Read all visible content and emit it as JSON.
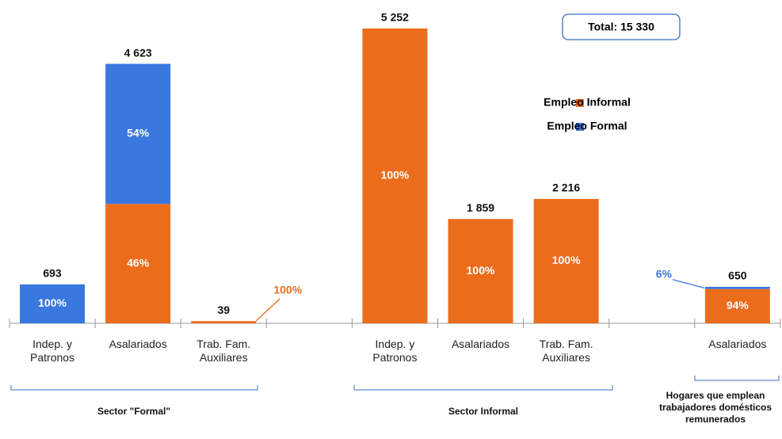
{
  "chart_data": {
    "type": "stacked-bar",
    "annotation": "Total: 15 330",
    "categories": [
      "Indep. y Patronos",
      "Asalariados",
      "Trab. Fam. Auxiliares",
      null,
      "Indep. y Patronos",
      "Asalariados",
      "Trab. Fam. Auxiliares",
      null,
      "Asalariados"
    ],
    "series": [
      {
        "name": "Empleo Informal",
        "color": "#eb6d1c",
        "values": [
          null,
          2127,
          39,
          null,
          5252,
          1859,
          2216,
          null,
          611
        ],
        "shares": [
          null,
          {
            "value": 46,
            "label": "46%"
          },
          {
            "value": 100,
            "label": "100%"
          },
          null,
          {
            "value": 100,
            "label": "100%"
          },
          {
            "value": 100,
            "label": "100%"
          },
          {
            "value": 100,
            "label": "100%"
          },
          null,
          {
            "value": 94,
            "label": "94%"
          }
        ]
      },
      {
        "name": "Empleo Formal",
        "color": "#3a78e0",
        "values": [
          693,
          2496,
          null,
          null,
          null,
          null,
          null,
          null,
          39
        ],
        "shares": [
          {
            "value": 100,
            "label": "100%"
          },
          {
            "value": 54,
            "label": "54%"
          },
          null,
          null,
          null,
          null,
          null,
          null,
          {
            "value": 6,
            "label": "6%"
          }
        ]
      }
    ],
    "totals": [
      {
        "value": 693,
        "label": "693"
      },
      {
        "value": 4623,
        "label": "4 623"
      },
      {
        "value": 39,
        "label": "39"
      },
      null,
      {
        "value": 5252,
        "label": "5 252"
      },
      {
        "value": 1859,
        "label": "1 859"
      },
      {
        "value": 2216,
        "label": "2 216"
      },
      null,
      {
        "value": 650,
        "label": "650"
      }
    ],
    "groups": [
      "Sector \"Formal\"",
      "Sector Informal",
      "Hogares que emplean trabajadores domésticos remunerados"
    ]
  }
}
